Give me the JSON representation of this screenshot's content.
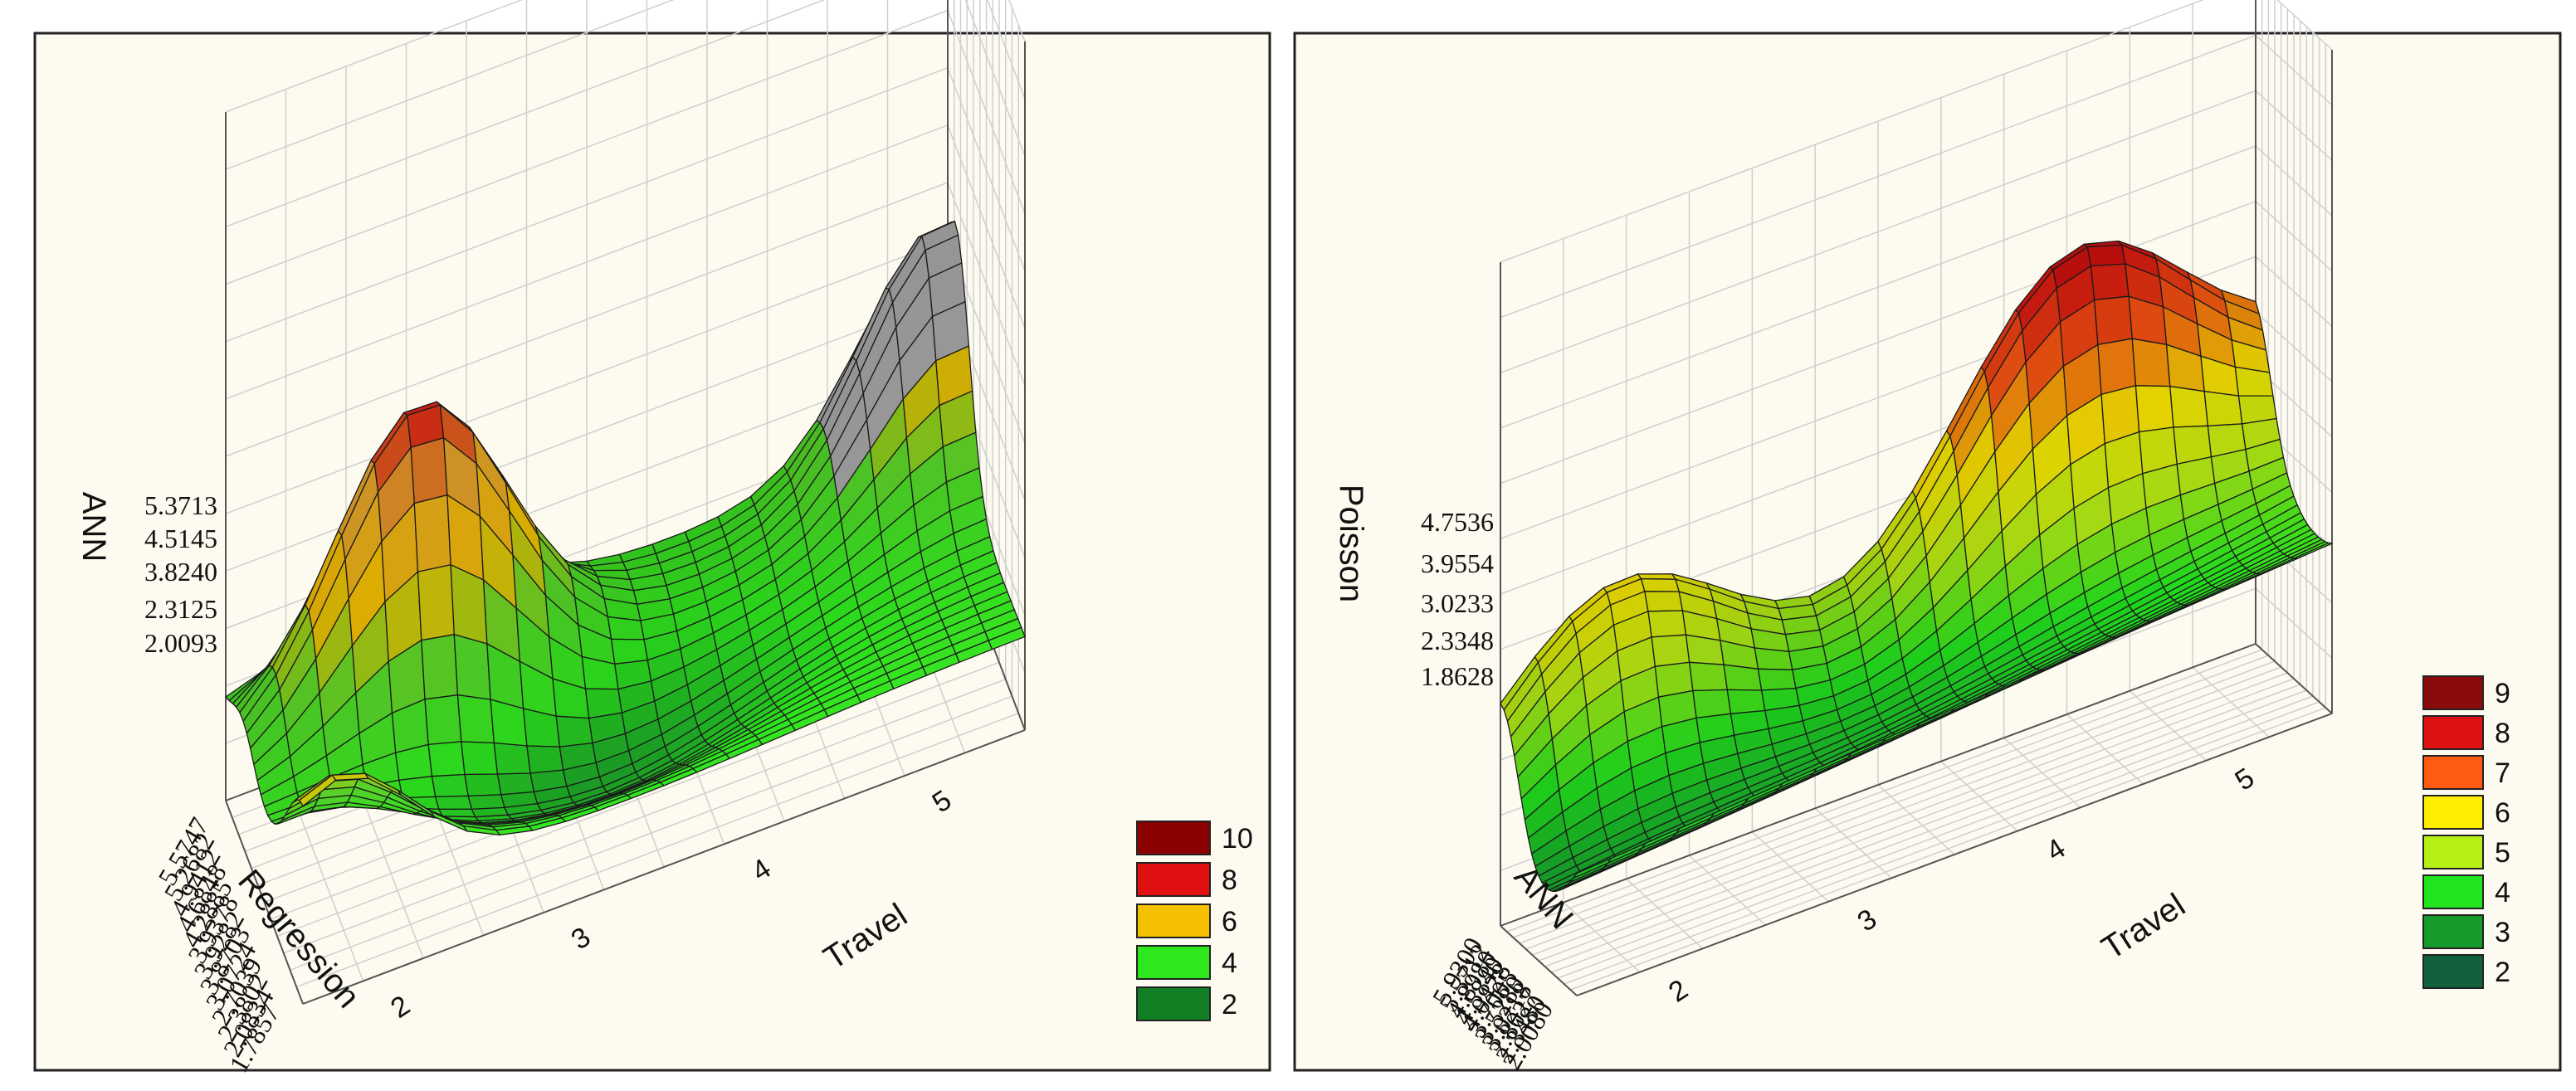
{
  "chart_data": [
    {
      "type": "surface3d",
      "title": "",
      "zlabel": "ANN",
      "ylabel": "Regression",
      "xlabel": "Travel",
      "z_ticks": [
        "5.3713",
        "4.5145",
        "3.8240",
        "2.3125",
        "2.0093"
      ],
      "y_ticks": [
        "5.5747",
        "5.2682",
        "4.9412",
        "4.6848",
        "4.2885",
        "3.9378",
        "3.9282",
        "3.8703",
        "3.0724",
        "2.7039",
        "2.3802",
        "2.0834",
        "1.7857"
      ],
      "x_ticks": [
        "2",
        "3",
        "4",
        "5"
      ],
      "x_range": [
        1.5,
        5.5
      ],
      "legend": [
        {
          "label": "10",
          "color": "#8b0000"
        },
        {
          "label": "8",
          "color": "#e01010"
        },
        {
          "label": "6",
          "color": "#f5c000"
        },
        {
          "label": "4",
          "color": "#2ee81e"
        },
        {
          "label": "2",
          "color": "#137f24"
        }
      ]
    },
    {
      "type": "surface3d",
      "title": "",
      "zlabel": "Poisson",
      "ylabel": "ANN",
      "xlabel": "Travel",
      "z_ticks": [
        "4.7536",
        "3.9554",
        "3.0233",
        "2.3348",
        "1.8628"
      ],
      "y_ticks": [
        "5.9300",
        "5.5712",
        "4.8980",
        "4.5840",
        "4.0428",
        "3.7005",
        "3.5280",
        "3.0218",
        "2.8027",
        "2.3480",
        "2.0080"
      ],
      "x_ticks": [
        "2",
        "3",
        "4",
        "5"
      ],
      "x_range": [
        1.5,
        5.5
      ],
      "legend": [
        {
          "label": "9",
          "color": "#8b0a0a"
        },
        {
          "label": "8",
          "color": "#dd1111"
        },
        {
          "label": "7",
          "color": "#ff5a12"
        },
        {
          "label": "6",
          "color": "#ffee00"
        },
        {
          "label": "5",
          "color": "#b6f016"
        },
        {
          "label": "4",
          "color": "#22e41e"
        },
        {
          "label": "3",
          "color": "#159a2c"
        },
        {
          "label": "2",
          "color": "#11623c"
        }
      ]
    }
  ]
}
